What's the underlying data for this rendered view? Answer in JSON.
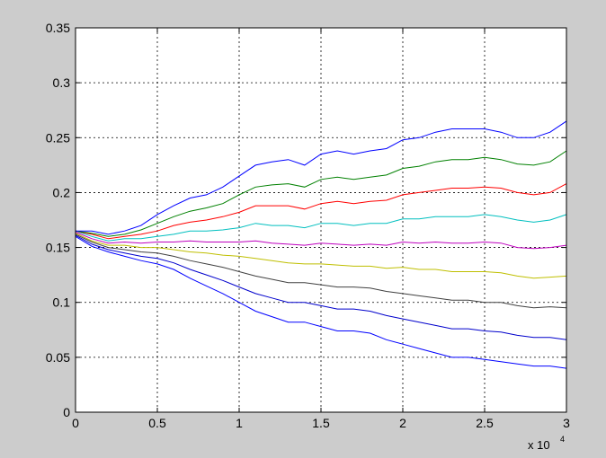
{
  "chart_data": {
    "type": "line",
    "title": "",
    "xlabel": "",
    "ylabel": "",
    "xlim": [
      0,
      30000
    ],
    "ylim": [
      0,
      0.35
    ],
    "x_multiplier_label": "x 10",
    "x_multiplier_exponent": "4",
    "x_ticks": [
      0,
      5000,
      10000,
      15000,
      20000,
      25000,
      30000
    ],
    "x_tick_labels": [
      "0",
      "0.5",
      "1",
      "1.5",
      "2",
      "2.5",
      "3"
    ],
    "y_ticks": [
      0,
      0.05,
      0.1,
      0.15,
      0.2,
      0.25,
      0.3,
      0.35
    ],
    "y_tick_labels": [
      "0",
      "0.05",
      "0.1",
      "0.15",
      "0.2",
      "0.25",
      "0.3",
      "0.35"
    ],
    "grid": true,
    "background": "#ffffff",
    "series_colors": [
      "#0000ff",
      "#008000",
      "#ff0000",
      "#00bfbf",
      "#bf00bf",
      "#bfbf00",
      "#404040",
      "#0000cc",
      "#008000",
      "#0000ff"
    ],
    "series": [
      {
        "x": [
          0,
          1000,
          2000,
          3000,
          4000,
          5000,
          6000,
          7000,
          8000,
          9000,
          10000,
          11000,
          12000,
          13000,
          14000,
          15000,
          16000,
          17000,
          18000,
          19000,
          20000,
          21000,
          22000,
          23000,
          24000,
          25000,
          26000,
          27000,
          28000,
          29000,
          30000
        ],
        "y": [
          0.165,
          0.165,
          0.162,
          0.165,
          0.17,
          0.18,
          0.188,
          0.195,
          0.198,
          0.205,
          0.215,
          0.225,
          0.228,
          0.23,
          0.225,
          0.235,
          0.238,
          0.235,
          0.238,
          0.24,
          0.248,
          0.25,
          0.255,
          0.258,
          0.258,
          0.258,
          0.255,
          0.25,
          0.25,
          0.255,
          0.265
        ]
      },
      {
        "x": [
          0,
          1000,
          2000,
          3000,
          4000,
          5000,
          6000,
          7000,
          8000,
          9000,
          10000,
          11000,
          12000,
          13000,
          14000,
          15000,
          16000,
          17000,
          18000,
          19000,
          20000,
          21000,
          22000,
          23000,
          24000,
          25000,
          26000,
          27000,
          28000,
          29000,
          30000
        ],
        "y": [
          0.165,
          0.163,
          0.16,
          0.162,
          0.166,
          0.172,
          0.178,
          0.183,
          0.186,
          0.19,
          0.198,
          0.205,
          0.207,
          0.208,
          0.205,
          0.212,
          0.214,
          0.212,
          0.214,
          0.216,
          0.222,
          0.224,
          0.228,
          0.23,
          0.23,
          0.232,
          0.23,
          0.226,
          0.225,
          0.228,
          0.238
        ]
      },
      {
        "x": [
          0,
          1000,
          2000,
          3000,
          4000,
          5000,
          6000,
          7000,
          8000,
          9000,
          10000,
          11000,
          12000,
          13000,
          14000,
          15000,
          16000,
          17000,
          18000,
          19000,
          20000,
          21000,
          22000,
          23000,
          24000,
          25000,
          26000,
          27000,
          28000,
          29000,
          30000
        ],
        "y": [
          0.165,
          0.162,
          0.158,
          0.16,
          0.162,
          0.165,
          0.17,
          0.173,
          0.175,
          0.178,
          0.182,
          0.188,
          0.188,
          0.188,
          0.185,
          0.19,
          0.192,
          0.19,
          0.192,
          0.193,
          0.198,
          0.2,
          0.202,
          0.204,
          0.204,
          0.205,
          0.204,
          0.2,
          0.198,
          0.2,
          0.208
        ]
      },
      {
        "x": [
          0,
          1000,
          2000,
          3000,
          4000,
          5000,
          6000,
          7000,
          8000,
          9000,
          10000,
          11000,
          12000,
          13000,
          14000,
          15000,
          16000,
          17000,
          18000,
          19000,
          20000,
          21000,
          22000,
          23000,
          24000,
          25000,
          26000,
          27000,
          28000,
          29000,
          30000
        ],
        "y": [
          0.165,
          0.16,
          0.156,
          0.158,
          0.158,
          0.16,
          0.162,
          0.165,
          0.165,
          0.166,
          0.168,
          0.172,
          0.17,
          0.17,
          0.168,
          0.172,
          0.172,
          0.17,
          0.172,
          0.172,
          0.176,
          0.176,
          0.178,
          0.178,
          0.178,
          0.18,
          0.178,
          0.175,
          0.173,
          0.175,
          0.18
        ]
      },
      {
        "x": [
          0,
          1000,
          2000,
          3000,
          4000,
          5000,
          6000,
          7000,
          8000,
          9000,
          10000,
          11000,
          12000,
          13000,
          14000,
          15000,
          16000,
          17000,
          18000,
          19000,
          20000,
          21000,
          22000,
          23000,
          24000,
          25000,
          26000,
          27000,
          28000,
          29000,
          30000
        ],
        "y": [
          0.164,
          0.158,
          0.154,
          0.155,
          0.154,
          0.155,
          0.155,
          0.156,
          0.155,
          0.155,
          0.155,
          0.156,
          0.154,
          0.153,
          0.152,
          0.154,
          0.153,
          0.152,
          0.153,
          0.152,
          0.155,
          0.154,
          0.155,
          0.154,
          0.154,
          0.155,
          0.154,
          0.15,
          0.149,
          0.15,
          0.152
        ]
      },
      {
        "x": [
          0,
          1000,
          2000,
          3000,
          4000,
          5000,
          6000,
          7000,
          8000,
          9000,
          10000,
          11000,
          12000,
          13000,
          14000,
          15000,
          16000,
          17000,
          18000,
          19000,
          20000,
          21000,
          22000,
          23000,
          24000,
          25000,
          26000,
          27000,
          28000,
          29000,
          30000
        ],
        "y": [
          0.163,
          0.156,
          0.152,
          0.152,
          0.15,
          0.15,
          0.148,
          0.146,
          0.145,
          0.143,
          0.142,
          0.14,
          0.138,
          0.136,
          0.135,
          0.135,
          0.134,
          0.133,
          0.133,
          0.131,
          0.132,
          0.13,
          0.13,
          0.128,
          0.128,
          0.128,
          0.127,
          0.124,
          0.122,
          0.123,
          0.124
        ]
      },
      {
        "x": [
          0,
          1000,
          2000,
          3000,
          4000,
          5000,
          6000,
          7000,
          8000,
          9000,
          10000,
          11000,
          12000,
          13000,
          14000,
          15000,
          16000,
          17000,
          18000,
          19000,
          20000,
          21000,
          22000,
          23000,
          24000,
          25000,
          26000,
          27000,
          28000,
          29000,
          30000
        ],
        "y": [
          0.162,
          0.155,
          0.15,
          0.148,
          0.146,
          0.145,
          0.142,
          0.138,
          0.135,
          0.132,
          0.128,
          0.124,
          0.121,
          0.118,
          0.118,
          0.116,
          0.114,
          0.114,
          0.113,
          0.11,
          0.108,
          0.106,
          0.104,
          0.102,
          0.102,
          0.1,
          0.1,
          0.097,
          0.095,
          0.096,
          0.095
        ]
      },
      {
        "x": [
          0,
          1000,
          2000,
          3000,
          4000,
          5000,
          6000,
          7000,
          8000,
          9000,
          10000,
          11000,
          12000,
          13000,
          14000,
          15000,
          16000,
          17000,
          18000,
          19000,
          20000,
          21000,
          22000,
          23000,
          24000,
          25000,
          26000,
          27000,
          28000,
          29000,
          30000
        ],
        "y": [
          0.161,
          0.153,
          0.148,
          0.145,
          0.142,
          0.14,
          0.136,
          0.13,
          0.125,
          0.12,
          0.114,
          0.108,
          0.104,
          0.1,
          0.1,
          0.097,
          0.094,
          0.094,
          0.092,
          0.088,
          0.085,
          0.082,
          0.079,
          0.076,
          0.076,
          0.074,
          0.073,
          0.07,
          0.068,
          0.068,
          0.066
        ]
      },
      {
        "x": [
          0,
          1000,
          2000,
          3000,
          4000,
          5000,
          6000,
          7000,
          8000,
          9000,
          10000,
          11000,
          12000,
          13000,
          14000,
          15000,
          16000,
          17000,
          18000,
          19000,
          20000,
          21000,
          22000,
          23000,
          24000,
          25000,
          26000,
          27000,
          28000,
          29000,
          30000
        ],
        "y": [
          0.16,
          0.151,
          0.146,
          0.142,
          0.138,
          0.135,
          0.13,
          0.122,
          0.115,
          0.108,
          0.1,
          0.092,
          0.087,
          0.082,
          0.082,
          0.078,
          0.074,
          0.074,
          0.072,
          0.066,
          0.062,
          0.058,
          0.054,
          0.05,
          0.05,
          0.048,
          0.046,
          0.044,
          0.042,
          0.042,
          0.04
        ]
      }
    ]
  }
}
